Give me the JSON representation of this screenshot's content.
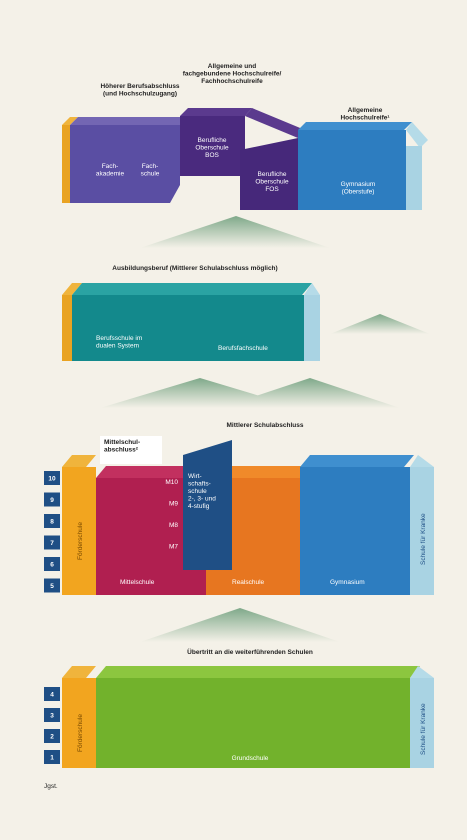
{
  "top": {
    "heading_left": [
      "Höherer Berufsabschluss",
      "(und Hochschulzugang)"
    ],
    "heading_mid": [
      "Allgemeine und",
      "fachgebundene Hochschulreife/",
      "Fachhochschulreife"
    ],
    "heading_right": [
      "Allgemeine",
      "Hochschulreife¹"
    ],
    "fachakademie": [
      "Fach-",
      "akademie"
    ],
    "fachschule": [
      "Fach-",
      "schule"
    ],
    "bos": [
      "Berufliche",
      "Oberschule",
      "BOS"
    ],
    "fos": [
      "Berufliche",
      "Oberschule",
      "FOS"
    ],
    "gymnasium": [
      "Gymnasium",
      "(Oberstufe)"
    ]
  },
  "vocational": {
    "heading": "Ausbildungsberuf (Mittlerer Schulabschluss möglich)",
    "berufsschule": [
      "Berufsschule im",
      "dualen System"
    ],
    "berufsfachschule": "Berufsfachschule"
  },
  "secondary": {
    "heading": "Mittlerer Schulabschluss",
    "mittelschulabschluss": [
      "Mittelschul-",
      "abschluss²"
    ],
    "m_levels": [
      "M10",
      "M9",
      "M8",
      "M7"
    ],
    "wirtschaftsschule": [
      "Wirt-",
      "schafts-",
      "schule",
      "2-, 3- und",
      "4-stufig"
    ],
    "grades": [
      10,
      9,
      8,
      7,
      6,
      5
    ],
    "foerderschule": "Förderschule",
    "mittelschule": "Mittelschule",
    "realschule": "Realschule",
    "gymnasium": "Gymnasium",
    "schule_fuer_kranke": "Schule für Kranke"
  },
  "primary": {
    "heading": "Übertritt an die weiterführenden Schulen",
    "grades": [
      4,
      3,
      2,
      1
    ],
    "foerderschule": "Förderschule",
    "grundschule": "Grundschule",
    "schule_fuer_kranke": "Schule für Kranke"
  },
  "grade_label": "Jgst."
}
